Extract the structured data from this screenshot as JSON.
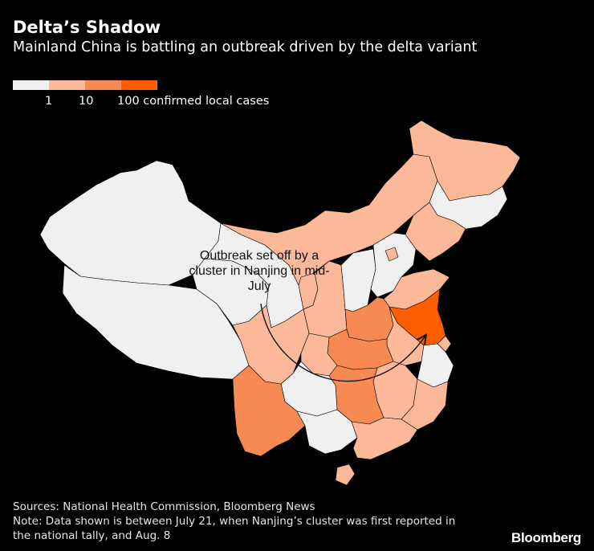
{
  "header": {
    "title": "Delta’s Shadow",
    "subtitle": "Mainland China is battling an outbreak driven by the delta variant"
  },
  "legend": {
    "colors": [
      "#f0f0f0",
      "#fbb99a",
      "#f78a52",
      "#ff5e00"
    ],
    "labels": [
      "1",
      "10",
      "100 confirmed local cases"
    ]
  },
  "annotation": {
    "text": "Outbreak set off by a cluster in Nanjing in mid-July"
  },
  "map_data": {
    "type": "choropleth",
    "regions": [
      {
        "name": "Xinjiang",
        "level": 0
      },
      {
        "name": "Tibet",
        "level": 0
      },
      {
        "name": "Qinghai",
        "level": 0
      },
      {
        "name": "Gansu",
        "level": 0
      },
      {
        "name": "Inner Mongolia",
        "level": 1
      },
      {
        "name": "Heilongjiang",
        "level": 1
      },
      {
        "name": "Jilin",
        "level": 0
      },
      {
        "name": "Liaoning",
        "level": 1
      },
      {
        "name": "Ningxia",
        "level": 1
      },
      {
        "name": "Shaanxi",
        "level": 1
      },
      {
        "name": "Shanxi",
        "level": 0
      },
      {
        "name": "Hebei",
        "level": 0
      },
      {
        "name": "Beijing",
        "level": 1
      },
      {
        "name": "Shandong",
        "level": 1
      },
      {
        "name": "Henan",
        "level": 2
      },
      {
        "name": "Jiangsu",
        "level": 3
      },
      {
        "name": "Anhui",
        "level": 1
      },
      {
        "name": "Hubei",
        "level": 2
      },
      {
        "name": "Hunan",
        "level": 2
      },
      {
        "name": "Sichuan",
        "level": 1
      },
      {
        "name": "Chongqing",
        "level": 1
      },
      {
        "name": "Yunnan",
        "level": 2
      },
      {
        "name": "Guizhou",
        "level": 0
      },
      {
        "name": "Guangxi",
        "level": 0
      },
      {
        "name": "Guangdong",
        "level": 1
      },
      {
        "name": "Jiangxi",
        "level": 1
      },
      {
        "name": "Fujian",
        "level": 1
      },
      {
        "name": "Zhejiang",
        "level": 0
      },
      {
        "name": "Shanghai",
        "level": 1
      },
      {
        "name": "Hainan",
        "level": 1
      }
    ]
  },
  "footer": {
    "sources": "Sources: National Health Commission, Bloomberg News",
    "note_line1": "Note: Data shown is between July 21, when Nanjing’s cluster was first reported in",
    "note_line2": "the national tally, and Aug. 8"
  },
  "brand": {
    "logo": "Bloomberg"
  }
}
